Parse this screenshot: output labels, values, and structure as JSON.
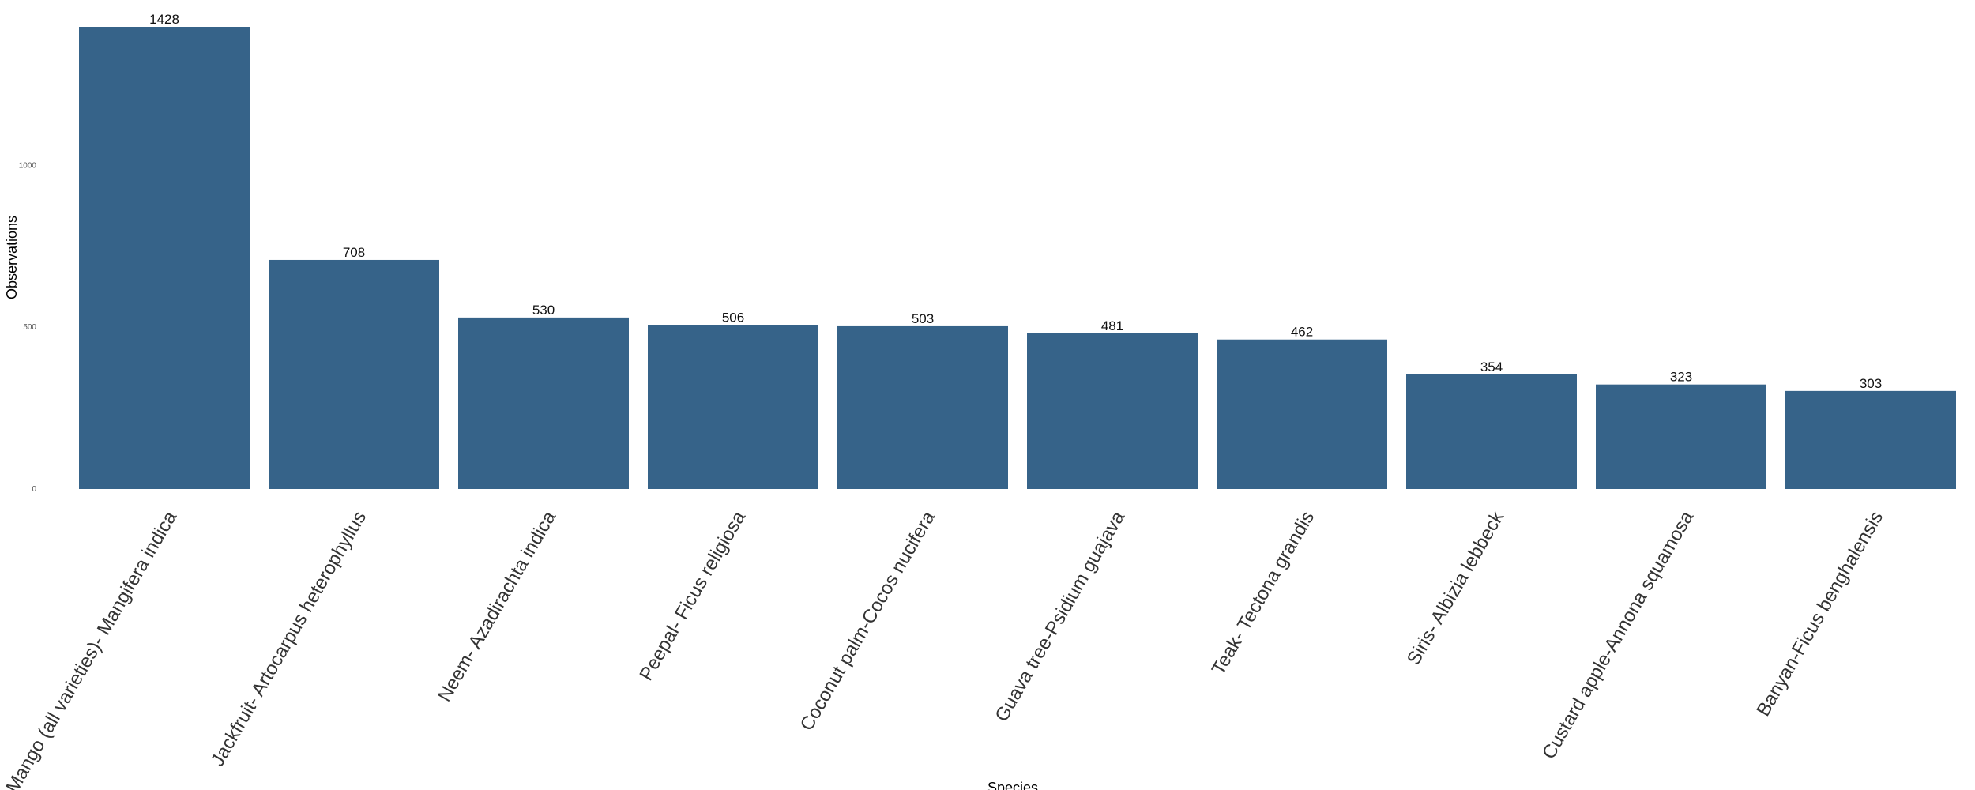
{
  "chart_data": {
    "type": "bar",
    "title": "",
    "xlabel": "Species",
    "ylabel": "Observations",
    "categories": [
      "Mango (all varieties)- Mangifera indica",
      "Jackfruit- Artocarpus heterophyllus",
      "Neem- Azadirachta indica",
      "Peepal- Ficus religiosa",
      "Coconut palm-Cocos nucifera",
      "Guava tree-Psidium guajava",
      "Teak- Tectona grandis",
      "Siris- Albizia lebbeck",
      "Custard apple-Annona squamosa",
      "Banyan-Ficus benghalensis"
    ],
    "values": [
      1428,
      708,
      530,
      506,
      503,
      481,
      462,
      354,
      323,
      303
    ],
    "yticks": [
      0,
      500,
      1000
    ],
    "ylim": [
      0,
      1428
    ],
    "grid": false,
    "legend": "none",
    "bar_color": "#366389"
  }
}
